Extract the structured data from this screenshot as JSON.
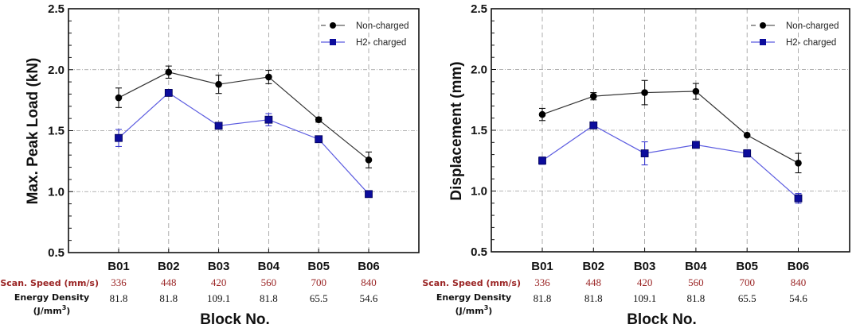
{
  "colors": {
    "non_charged_line": "#333333",
    "non_charged_marker": "#000000",
    "h2_line": "#5c5ce0",
    "h2_marker": "#0c0c9c",
    "h2_errorbar": "#3a3ad0",
    "scan_speed_text": "#9a2424",
    "energy_text": "#111111",
    "grid": "#9a9a9a"
  },
  "table_rows": {
    "scan_speed_label": "Scan. Speed (mm/s)",
    "energy_label_line1": "Energy Density",
    "energy_label_line2": "(J/mm",
    "energy_label_sup": "3",
    "energy_label_close": ")",
    "scan_speed": [
      "336",
      "448",
      "420",
      "560",
      "700",
      "840"
    ],
    "energy_density": [
      "81.8",
      "81.8",
      "109.1",
      "81.8",
      "65.5",
      "54.6"
    ]
  },
  "chart_data": [
    {
      "type": "line",
      "title": "",
      "xlabel": "Block No.",
      "ylabel": "Max. Peak Load (kN)",
      "categories": [
        "B01",
        "B02",
        "B03",
        "B04",
        "B05",
        "B06"
      ],
      "ylim": [
        0.5,
        2.5
      ],
      "yticks": [
        "0.5",
        "1.0",
        "1.5",
        "2.0",
        "2.5"
      ],
      "ytick_values": [
        0.5,
        1.0,
        1.5,
        2.0,
        2.5
      ],
      "minor_tick_step": 0.1,
      "grid": true,
      "legend_position": "top-right",
      "series": [
        {
          "name": "Non-charged",
          "marker": "circle",
          "values": [
            1.77,
            1.98,
            1.88,
            1.94,
            1.59,
            1.26
          ],
          "errors": [
            0.08,
            0.05,
            0.075,
            0.055,
            0.02,
            0.065
          ]
        },
        {
          "name": "H2- charged",
          "marker": "square",
          "values": [
            1.44,
            1.81,
            1.54,
            1.59,
            1.43,
            0.98
          ],
          "errors": [
            0.07,
            0.0,
            0.0,
            0.05,
            0.02,
            0.01
          ]
        }
      ]
    },
    {
      "type": "line",
      "title": "",
      "xlabel": "Block No.",
      "ylabel": "Displacement (mm)",
      "categories": [
        "B01",
        "B02",
        "B03",
        "B04",
        "B05",
        "B06"
      ],
      "ylim": [
        0.5,
        2.5
      ],
      "yticks": [
        "0.5",
        "1.0",
        "1.5",
        "2.0",
        "2.5"
      ],
      "ytick_values": [
        0.5,
        1.0,
        1.5,
        2.0,
        2.5
      ],
      "minor_tick_step": 0.1,
      "grid": true,
      "legend_position": "top-right",
      "series": [
        {
          "name": "Non-charged",
          "marker": "circle",
          "values": [
            1.63,
            1.78,
            1.81,
            1.82,
            1.46,
            1.23
          ],
          "errors": [
            0.05,
            0.03,
            0.1,
            0.065,
            0.01,
            0.08
          ]
        },
        {
          "name": "H2- charged",
          "marker": "square",
          "values": [
            1.25,
            1.54,
            1.31,
            1.38,
            1.31,
            0.94
          ],
          "errors": [
            0.03,
            0.01,
            0.095,
            0.02,
            0.03,
            0.04
          ]
        }
      ]
    }
  ]
}
